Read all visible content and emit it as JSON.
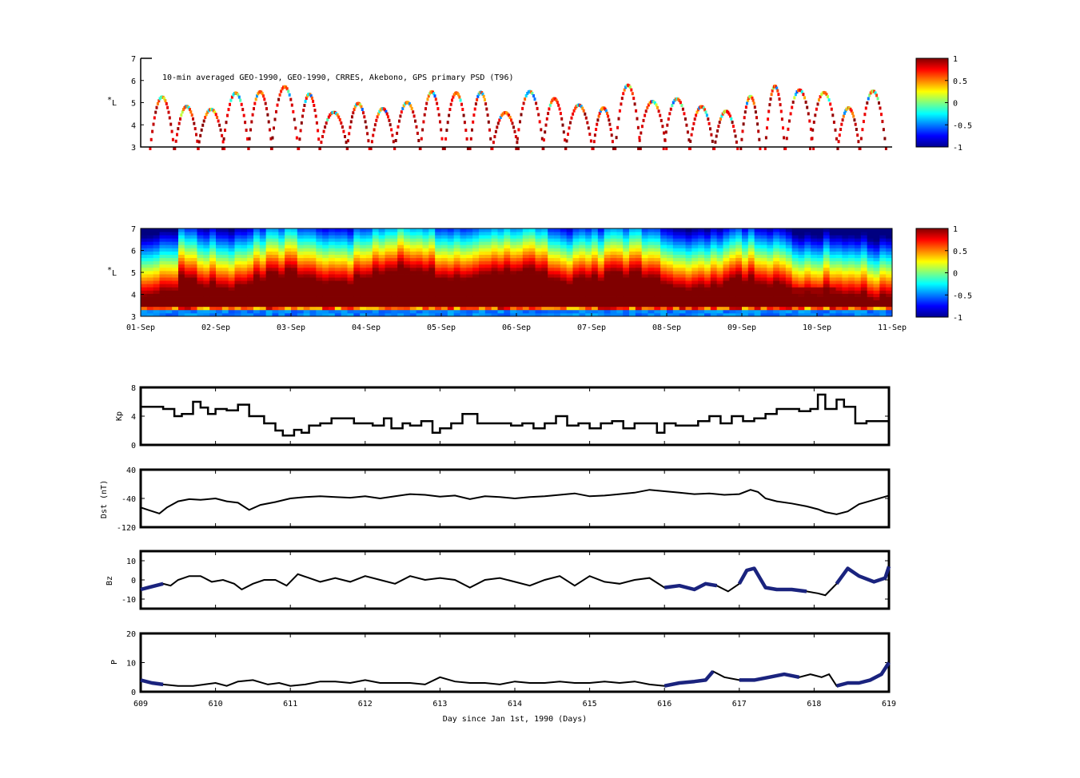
{
  "chart_data": [
    {
      "type": "heatmap",
      "annotation": "10-min averaged GEO-1990, GEO-1990, CRRES, Akebono, GPS  primary PSD (T96)",
      "ylabel_main": "L",
      "ylabel_star": "*",
      "ylim": [
        3,
        7
      ],
      "yticks": [
        "3",
        "4",
        "5",
        "6",
        "7"
      ],
      "colorbar": {
        "ticks": [
          "1",
          "0.5",
          "0",
          "-0.5",
          "-1"
        ],
        "range": [
          -1,
          1
        ],
        "colormap": "jet"
      },
      "description_values": {
        "orbit_passes": 30,
        "typical_L_apex": [
          4.6,
          5.9
        ]
      }
    },
    {
      "type": "heatmap",
      "ylabel_main": "L",
      "ylabel_star": "*",
      "ylim": [
        3,
        7
      ],
      "yticks": [
        "3",
        "4",
        "5",
        "6",
        "7"
      ],
      "xticks": [
        "01-Sep",
        "02-Sep",
        "03-Sep",
        "04-Sep",
        "05-Sep",
        "06-Sep",
        "07-Sep",
        "08-Sep",
        "09-Sep",
        "10-Sep",
        "11-Sep"
      ],
      "colorbar": {
        "ticks": [
          "1",
          "0.5",
          "0",
          "-0.5",
          "-1"
        ],
        "range": [
          -1,
          1
        ],
        "colormap": "jet"
      }
    },
    {
      "type": "line",
      "ylabel": "Kp",
      "ylim": [
        0,
        8
      ],
      "yticks": [
        "0",
        "4",
        "8"
      ],
      "x": [
        609,
        609.3,
        609.45,
        609.55,
        609.7,
        609.8,
        609.9,
        610.0,
        610.15,
        610.3,
        610.45,
        610.55,
        610.65,
        610.8,
        610.9,
        611.05,
        611.15,
        611.25,
        611.4,
        611.55,
        611.7,
        611.85,
        612.0,
        612.1,
        612.25,
        612.35,
        612.5,
        612.6,
        612.75,
        612.9,
        613.0,
        613.15,
        613.3,
        613.5,
        613.65,
        613.8,
        613.95,
        614.1,
        614.25,
        614.4,
        614.55,
        614.7,
        614.85,
        615.0,
        615.15,
        615.3,
        615.45,
        615.6,
        615.75,
        615.9,
        616.0,
        616.15,
        616.3,
        616.45,
        616.6,
        616.75,
        616.9,
        617.05,
        617.2,
        617.35,
        617.5,
        617.65,
        617.8,
        617.95,
        618.05,
        618.15,
        618.3,
        618.4,
        618.55,
        618.7,
        618.85,
        619.0
      ],
      "y": [
        5.3,
        5.0,
        4.0,
        4.3,
        6.0,
        5.2,
        4.3,
        5.0,
        4.8,
        5.6,
        4.0,
        4.0,
        3.0,
        2.0,
        1.3,
        2.1,
        1.7,
        2.7,
        3.0,
        3.7,
        3.7,
        3.0,
        3.0,
        2.7,
        3.7,
        2.3,
        3.0,
        2.7,
        3.3,
        1.7,
        2.3,
        3.0,
        4.3,
        3.0,
        3.0,
        3.0,
        2.7,
        3.0,
        2.3,
        3.0,
        4.0,
        2.7,
        3.0,
        2.3,
        3.0,
        3.3,
        2.3,
        3.0,
        3.0,
        1.7,
        3.0,
        2.7,
        2.7,
        3.3,
        4.0,
        3.0,
        4.0,
        3.3,
        3.7,
        4.3,
        5.0,
        5.0,
        4.7,
        5.0,
        7.0,
        5.0,
        6.3,
        5.3,
        3.0,
        3.3,
        3.3,
        4.0
      ]
    },
    {
      "type": "line",
      "ylabel": "Dst (nT)",
      "ylim": [
        -120,
        40
      ],
      "yticks": [
        "-120",
        "-40",
        "40"
      ],
      "x": [
        609,
        609.1,
        609.25,
        609.35,
        609.5,
        609.65,
        609.8,
        610.0,
        610.15,
        610.3,
        610.45,
        610.6,
        610.8,
        611.0,
        611.2,
        611.4,
        611.6,
        611.8,
        612.0,
        612.2,
        612.4,
        612.6,
        612.8,
        613.0,
        613.2,
        613.4,
        613.6,
        613.8,
        614.0,
        614.2,
        614.4,
        614.6,
        614.8,
        615.0,
        615.2,
        615.4,
        615.6,
        615.8,
        616.0,
        616.2,
        616.4,
        616.6,
        616.8,
        617.0,
        617.15,
        617.25,
        617.35,
        617.5,
        617.7,
        617.9,
        618.05,
        618.15,
        618.3,
        618.45,
        618.6,
        618.8,
        619.0
      ],
      "y": [
        -65,
        -72,
        -82,
        -65,
        -48,
        -42,
        -44,
        -40,
        -48,
        -52,
        -72,
        -58,
        -50,
        -40,
        -36,
        -34,
        -36,
        -38,
        -34,
        -40,
        -34,
        -28,
        -30,
        -35,
        -32,
        -42,
        -34,
        -36,
        -40,
        -36,
        -34,
        -30,
        -26,
        -34,
        -32,
        -28,
        -24,
        -16,
        -20,
        -24,
        -28,
        -26,
        -30,
        -28,
        -16,
        -22,
        -40,
        -48,
        -54,
        -62,
        -70,
        -78,
        -84,
        -76,
        -56,
        -44,
        -32
      ]
    },
    {
      "type": "line",
      "ylabel": "Bz",
      "ylim": [
        -15,
        15
      ],
      "yticks": [
        "-10",
        "0",
        "10"
      ],
      "series": [
        {
          "x": [
            609,
            609.1,
            609.2,
            609.3,
            609.4,
            609.5,
            609.65,
            609.8,
            609.95,
            610.1,
            610.25,
            610.35,
            610.5,
            610.65,
            610.8,
            610.95,
            611.1,
            611.25,
            611.4,
            611.6,
            611.8,
            612.0,
            612.2,
            612.4,
            612.6,
            612.8,
            613.0,
            613.2,
            613.4,
            613.6,
            613.8,
            614.0,
            614.2,
            614.4,
            614.6,
            614.8,
            615.0,
            615.2,
            615.4,
            615.6,
            615.8,
            616.0,
            616.2,
            616.4,
            616.55,
            616.7,
            616.85,
            617.0,
            617.1,
            617.2,
            617.35,
            617.5,
            617.7,
            617.9,
            618.05,
            618.15,
            618.3,
            618.45,
            618.6,
            618.8,
            618.95,
            619.0
          ],
          "y": [
            -5,
            -4,
            -3,
            -2,
            -3,
            0,
            2,
            2,
            -1,
            0,
            -2,
            -5,
            -2,
            0,
            0,
            -3,
            3,
            1,
            -1,
            1,
            -1,
            2,
            0,
            -2,
            2,
            0,
            1,
            0,
            -4,
            0,
            1,
            -1,
            -3,
            0,
            2,
            -3,
            2,
            -1,
            -2,
            0,
            1,
            -4,
            -3,
            -5,
            -2,
            -3,
            -6,
            -2,
            5,
            6,
            -4,
            -5,
            -5,
            -6,
            -7,
            -8,
            -2,
            6,
            2,
            -1,
            1,
            7
          ]
        }
      ],
      "thick_segments": [
        [
          609,
          609.35
        ],
        [
          609.85,
          610.0
        ],
        [
          616.0,
          616.7
        ],
        [
          616.9,
          617.9
        ],
        [
          618.3,
          619.0
        ]
      ]
    },
    {
      "type": "line",
      "ylabel": "P",
      "xlabel": "Day since Jan 1st, 1990 (Days)",
      "xlim": [
        609,
        619
      ],
      "xticks": [
        "609",
        "610",
        "611",
        "612",
        "613",
        "614",
        "615",
        "616",
        "617",
        "618",
        "619"
      ],
      "ylim": [
        0,
        20
      ],
      "yticks": [
        "0",
        "10",
        "20"
      ],
      "x": [
        609,
        609.15,
        609.3,
        609.5,
        609.7,
        609.85,
        610.0,
        610.15,
        610.3,
        610.5,
        610.7,
        610.85,
        611.0,
        611.2,
        611.4,
        611.6,
        611.8,
        612.0,
        612.2,
        612.4,
        612.6,
        612.8,
        613.0,
        613.2,
        613.4,
        613.6,
        613.8,
        614.0,
        614.2,
        614.4,
        614.6,
        614.8,
        615.0,
        615.2,
        615.4,
        615.6,
        615.8,
        616.0,
        616.2,
        616.4,
        616.55,
        616.65,
        616.8,
        617.0,
        617.2,
        617.4,
        617.6,
        617.8,
        617.95,
        618.1,
        618.2,
        618.3,
        618.45,
        618.6,
        618.75,
        618.9,
        619.0
      ],
      "y": [
        4,
        3,
        2.5,
        2,
        2,
        2.5,
        3,
        2,
        3.5,
        4,
        2.5,
        3,
        2,
        2.5,
        3.5,
        3.5,
        3,
        4,
        3,
        3,
        3,
        2.5,
        5,
        3.5,
        3,
        3,
        2.5,
        3.5,
        3,
        3,
        3.5,
        3,
        3,
        3.5,
        3,
        3.5,
        2.5,
        2,
        3,
        3.5,
        4,
        7,
        5,
        4,
        4,
        5,
        6,
        5,
        6,
        5,
        6,
        2,
        3,
        3,
        4,
        6,
        10
      ],
      "thick_segments": [
        [
          609,
          609.3
        ],
        [
          609.8,
          609.95
        ],
        [
          616.0,
          616.7
        ],
        [
          616.9,
          617.9
        ],
        [
          618.3,
          619.0
        ]
      ]
    }
  ]
}
